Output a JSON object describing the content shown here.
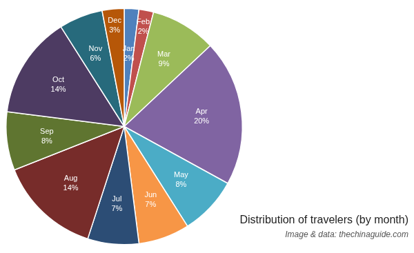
{
  "chart_data": {
    "type": "pie",
    "title": "Distribution of travelers (by month)",
    "subtitle": "Image & data: thechinaguide.com",
    "categories": [
      "Jan",
      "Feb",
      "Mar",
      "Apr",
      "May",
      "Jun",
      "Jul",
      "Aug",
      "Sep",
      "Oct",
      "Nov",
      "Dec"
    ],
    "values": [
      2,
      2,
      9,
      20,
      8,
      7,
      7,
      14,
      8,
      14,
      6,
      3
    ],
    "value_labels": [
      "2%",
      "2%",
      "9%",
      "20%",
      "8%",
      "7%",
      "7%",
      "14%",
      "8%",
      "14%",
      "6%",
      "3%"
    ],
    "colors": [
      "#4f81bd",
      "#c0504d",
      "#9bbb59",
      "#8064a2",
      "#4bacc6",
      "#f79646",
      "#2c4d75",
      "#772c2a",
      "#5f7530",
      "#4d3b62",
      "#276a7c",
      "#b65708"
    ],
    "data_labels": true
  }
}
